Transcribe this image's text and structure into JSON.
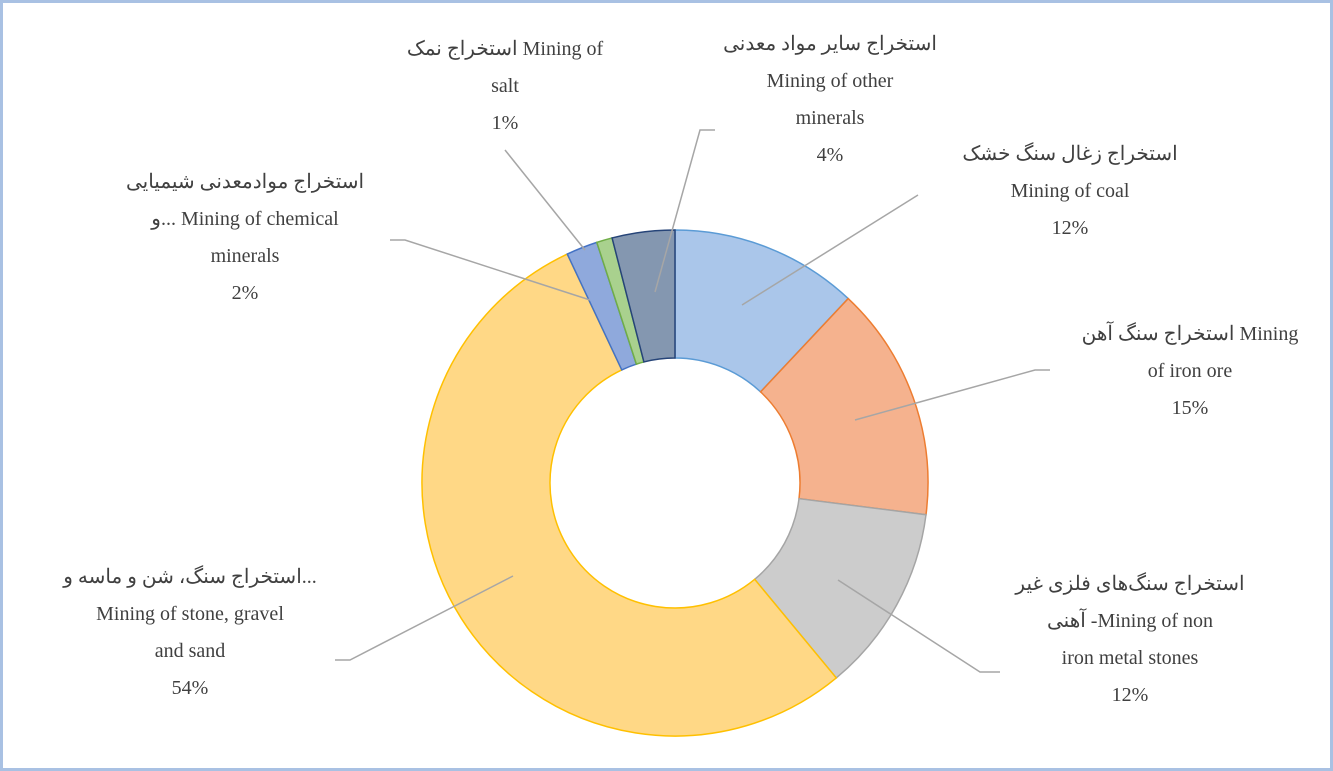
{
  "chart_data": {
    "type": "donut",
    "categories": [
      "استخراج زغال سنگ خشک\nMining of coal",
      "استخراج سنگ آهن  Mining\nof iron ore",
      "استخراج سنگ‌های فلزی غیر\nآهنی -Mining of non\niron metal stones",
      "استخراج سنگ، شن و ماسه و...\nMining of stone, gravel\nand sand",
      "استخراج موادمعدنی شیمیایی\nو... Mining of chemical\nminerals",
      "استخراج نمک  Mining of\nsalt",
      "استخراج سایر مواد معدنی\nMining of other\nminerals"
    ],
    "values": [
      12,
      15,
      12,
      54,
      2,
      1,
      4
    ],
    "value_labels": [
      "12%",
      "15%",
      "12%",
      "54%",
      "2%",
      "1%",
      "4%"
    ],
    "colors": [
      "#aac6ea",
      "#f5b28e",
      "#cccccc",
      "#ffd886",
      "#8fa9dc",
      "#a9d18e",
      "#8497b0"
    ],
    "edge_colors": [
      "#5b9bd5",
      "#ed7d31",
      "#a5a5a5",
      "#ffc000",
      "#4472c4",
      "#70ad47",
      "#264478"
    ]
  }
}
